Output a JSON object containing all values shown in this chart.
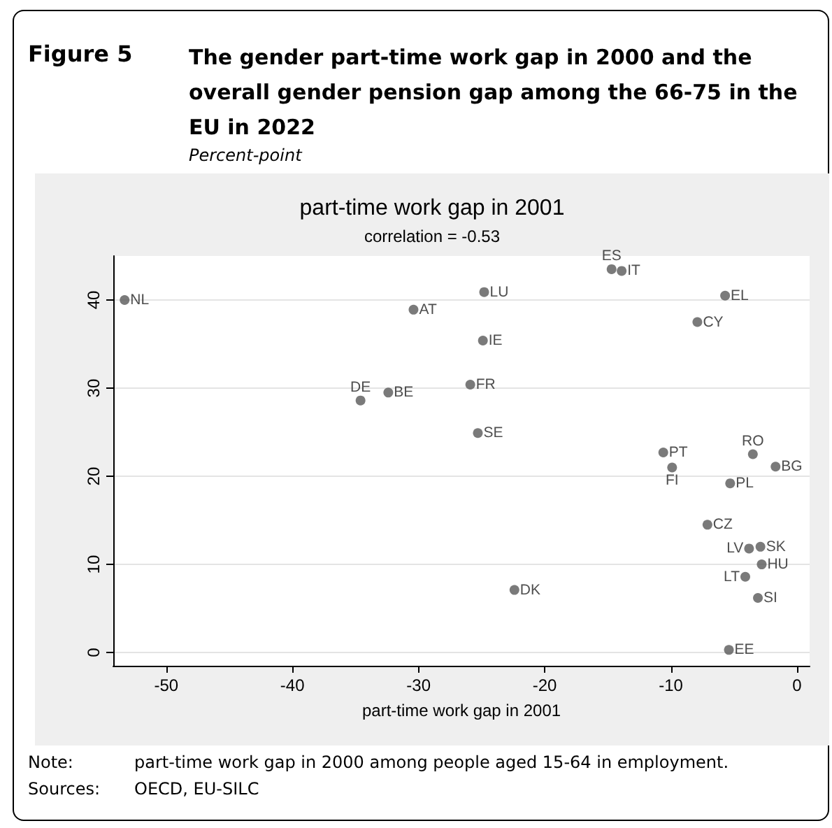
{
  "chart_data": {
    "type": "scatter",
    "title": "The gender part-time work gap in 2000 and the overall gender pension gap among the 66-75 in the EU in 2022",
    "subtitle": "Percent-point",
    "xlabel": "part-time work gap in 2001",
    "x": [
      -53.3,
      -30.4,
      -34.6,
      -32.4,
      -24.8,
      -24.9,
      -25.9,
      -25.3,
      -14.7,
      -13.9,
      -5.7,
      -7.9,
      -10.6,
      -9.9,
      -3.5,
      -1.7,
      -5.3,
      -7.1,
      -3.8,
      -2.9,
      -2.8,
      -4.1,
      -3.1,
      -22.4,
      -5.4
    ],
    "values": [
      40.0,
      38.9,
      28.6,
      29.5,
      40.9,
      35.4,
      30.4,
      24.9,
      43.5,
      43.3,
      40.5,
      37.5,
      22.7,
      21.0,
      22.5,
      21.1,
      19.2,
      14.5,
      11.8,
      12.0,
      10.0,
      8.6,
      6.2,
      7.1,
      0.3
    ],
    "color": "#595959",
    "marker": "circle",
    "xlim": [
      -54.2,
      1
    ],
    "xticks": [
      -50,
      -40,
      -30,
      -20,
      -10,
      0
    ],
    "ylim": [
      -1.5,
      45
    ],
    "yticks": [
      0,
      10,
      20,
      30,
      40
    ],
    "grid": "y",
    "annotations": [
      "Figure 5",
      "part-time work gap in 2001",
      "correlation = -0.53",
      "Note:",
      "part-time work gap in 2000 among people aged 15-64 in employment.",
      "Sources:",
      "OECD, EU-SILC",
      {
        "text": "NL",
        "x": -53.3,
        "y": 40.0
      },
      {
        "text": "AT",
        "x": -30.4,
        "y": 38.9
      },
      {
        "text": "DE",
        "x": -34.6,
        "y": 28.6
      },
      {
        "text": "BE",
        "x": -32.4,
        "y": 29.5
      },
      {
        "text": "LU",
        "x": -24.8,
        "y": 40.9
      },
      {
        "text": "IE",
        "x": -24.9,
        "y": 35.4
      },
      {
        "text": "FR",
        "x": -25.9,
        "y": 30.4
      },
      {
        "text": "SE",
        "x": -25.3,
        "y": 24.9
      },
      {
        "text": "ES",
        "x": -14.7,
        "y": 43.5
      },
      {
        "text": "IT",
        "x": -13.9,
        "y": 43.3
      },
      {
        "text": "EL",
        "x": -5.7,
        "y": 40.5
      },
      {
        "text": "CY",
        "x": -7.9,
        "y": 37.5
      },
      {
        "text": "PT",
        "x": -10.6,
        "y": 22.7
      },
      {
        "text": "FI",
        "x": -9.9,
        "y": 21.0
      },
      {
        "text": "RO",
        "x": -3.5,
        "y": 22.5
      },
      {
        "text": "BG",
        "x": -1.7,
        "y": 21.1
      },
      {
        "text": "PL",
        "x": -5.3,
        "y": 19.2
      },
      {
        "text": "CZ",
        "x": -7.1,
        "y": 14.5
      },
      {
        "text": "LV",
        "x": -3.8,
        "y": 11.8
      },
      {
        "text": "SK",
        "x": -2.9,
        "y": 12.0
      },
      {
        "text": "HU",
        "x": -2.8,
        "y": 10.0
      },
      {
        "text": "LT",
        "x": -4.1,
        "y": 8.6
      },
      {
        "text": "SI",
        "x": -3.1,
        "y": 6.2
      },
      {
        "text": "DK",
        "x": -22.4,
        "y": 7.1
      },
      {
        "text": "EE",
        "x": -5.4,
        "y": 0.3
      }
    ]
  }
}
